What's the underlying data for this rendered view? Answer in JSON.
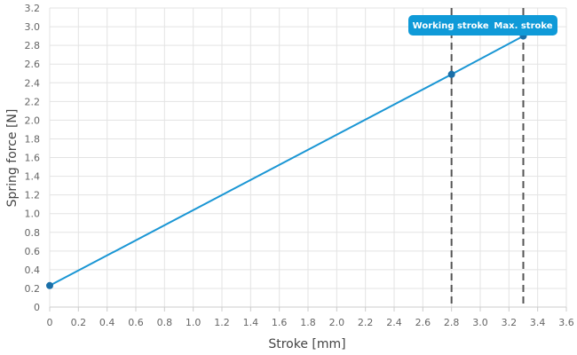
{
  "chart_data": {
    "type": "line",
    "xlabel": "Stroke [mm]",
    "ylabel": "Spring force [N]",
    "xlim": [
      0,
      3.6
    ],
    "ylim": [
      0,
      3.2
    ],
    "x_ticks": [
      "0",
      "0.2",
      "0.4",
      "0.6",
      "0.8",
      "1.0",
      "1.2",
      "1.4",
      "1.6",
      "1.8",
      "2.0",
      "2.2",
      "2.4",
      "2.6",
      "2.8",
      "3.0",
      "3.2",
      "3.4",
      "3.6"
    ],
    "y_ticks": [
      "0",
      "0.2",
      "0.4",
      "0.6",
      "0.8",
      "1.0",
      "1.2",
      "1.4",
      "1.6",
      "1.8",
      "2.0",
      "2.2",
      "2.4",
      "2.6",
      "2.8",
      "3.0",
      "3.2"
    ],
    "grid": true,
    "series": [
      {
        "color": "#1a96d4",
        "x": [
          0,
          2.8,
          3.3
        ],
        "y": [
          0.23,
          2.49,
          2.9
        ]
      }
    ],
    "markers": [
      {
        "label": "Working stroke",
        "x": 2.8
      },
      {
        "label": "Max. stroke",
        "x": 3.3
      }
    ],
    "colors": {
      "line": "#1a96d4",
      "point": "#1a6fa8",
      "marker_line": "#555555",
      "label_bg": "#0f9ad8",
      "grid": "#e3e3e3"
    }
  }
}
